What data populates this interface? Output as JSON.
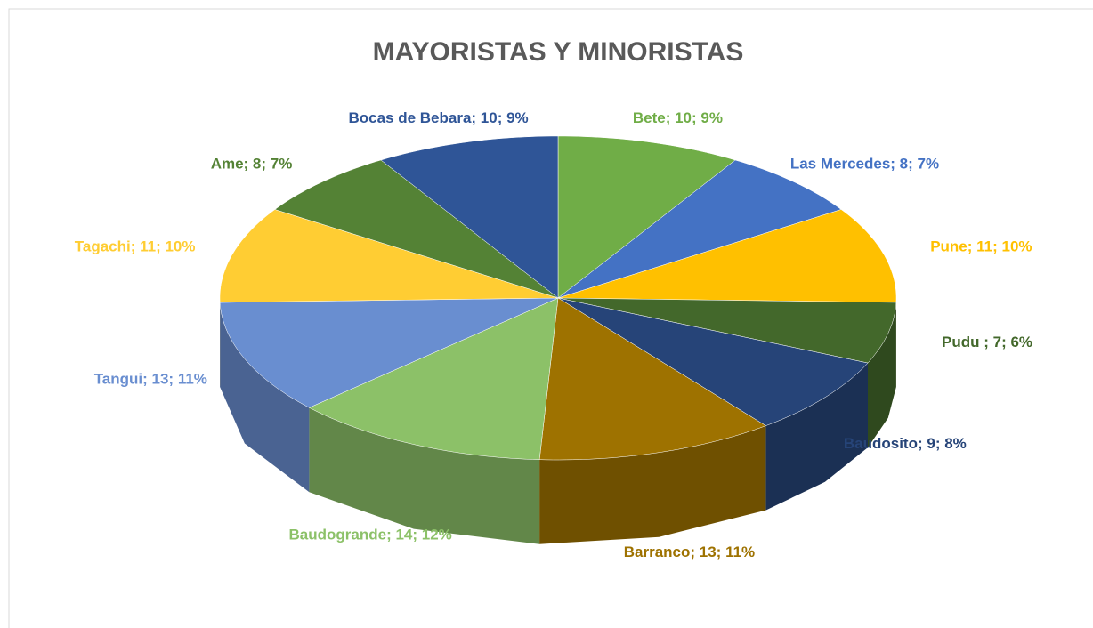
{
  "chart_data": {
    "type": "pie3d",
    "title": "MAYORISTAS Y MINORISTAS",
    "categories": [
      "Bete",
      "Las Mercedes",
      "Pune",
      "Pudu ",
      "Baudosito",
      "Barranco",
      "Baudogrande",
      "Tangui",
      "Tagachi",
      "Ame",
      "Bocas de Bebara"
    ],
    "values": [
      10,
      8,
      11,
      7,
      9,
      13,
      14,
      13,
      11,
      8,
      10
    ],
    "value_labels": [
      "Bete; 10; 9%",
      "Las Mercedes; 8; 7%",
      "Pune; 11; 10%",
      "Pudu ; 7; 6%",
      "Baudosito; 9; 8%",
      "Barranco; 13; 11%",
      "Baudogrande; 14; 12%",
      "Tangui; 13; 11%",
      "Tagachi; 11; 10%",
      "Ame; 8; 7%",
      "Bocas de Bebara; 10; 9%"
    ],
    "colors": [
      "#70ad47",
      "#4472c4",
      "#ffc000",
      "#43682b",
      "#264478",
      "#9e7200",
      "#8cc168",
      "#698ed0",
      "#ffcd33",
      "#548235",
      "#2f5597"
    ]
  }
}
